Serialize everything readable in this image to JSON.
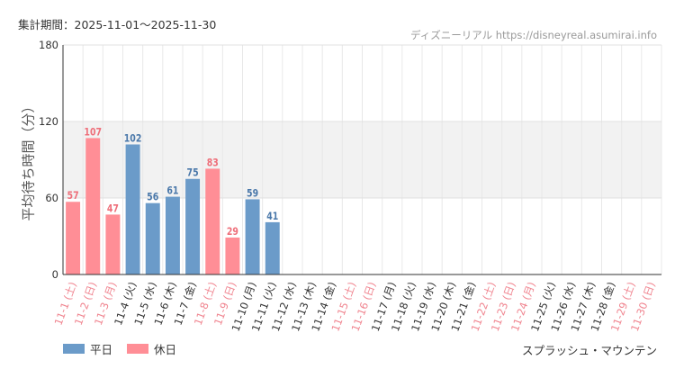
{
  "header": {
    "period": "集計期間：2025-11-01～2025-11-30",
    "source": "ディズニーリアル https://disneyreal.asumirai.info"
  },
  "footer": {
    "attraction": "スプラッシュ・マウンテン"
  },
  "colors": {
    "weekday": "#6b9bc9",
    "holiday": "#ff8e96",
    "weekday_text": "#4a78aa",
    "holiday_text": "#ee6f7a",
    "band": "#f2f2f2"
  },
  "chart_data": {
    "type": "bar",
    "ylabel": "平均待ち時間（分）",
    "ylim": [
      0,
      180
    ],
    "yticks": [
      0,
      60,
      120,
      180
    ],
    "bands": [
      [
        60,
        120
      ]
    ],
    "grid": true,
    "legend_position": "bottom-left",
    "categories": [
      "11-1 (土)",
      "11-2 (日)",
      "11-3 (月)",
      "11-4 (火)",
      "11-5 (水)",
      "11-6 (木)",
      "11-7 (金)",
      "11-8 (土)",
      "11-9 (日)",
      "11-10 (月)",
      "11-11 (火)",
      "11-12 (水)",
      "11-13 (木)",
      "11-14 (金)",
      "11-15 (土)",
      "11-16 (日)",
      "11-17 (月)",
      "11-18 (火)",
      "11-19 (水)",
      "11-20 (木)",
      "11-21 (金)",
      "11-22 (土)",
      "11-23 (日)",
      "11-24 (月)",
      "11-25 (火)",
      "11-26 (水)",
      "11-27 (木)",
      "11-28 (金)",
      "11-29 (土)",
      "11-30 (日)"
    ],
    "day_type": [
      "holiday",
      "holiday",
      "holiday",
      "weekday",
      "weekday",
      "weekday",
      "weekday",
      "holiday",
      "holiday",
      "weekday",
      "weekday",
      "weekday",
      "weekday",
      "weekday",
      "holiday",
      "holiday",
      "weekday",
      "weekday",
      "weekday",
      "weekday",
      "weekday",
      "holiday",
      "holiday",
      "holiday",
      "weekday",
      "weekday",
      "weekday",
      "weekday",
      "holiday",
      "holiday"
    ],
    "values": [
      57,
      107,
      47,
      102,
      56,
      61,
      75,
      83,
      29,
      59,
      41,
      null,
      null,
      null,
      null,
      null,
      null,
      null,
      null,
      null,
      null,
      null,
      null,
      null,
      null,
      null,
      null,
      null,
      null,
      null
    ],
    "series": [
      {
        "name": "平日",
        "key": "weekday"
      },
      {
        "name": "休日",
        "key": "holiday"
      }
    ]
  }
}
